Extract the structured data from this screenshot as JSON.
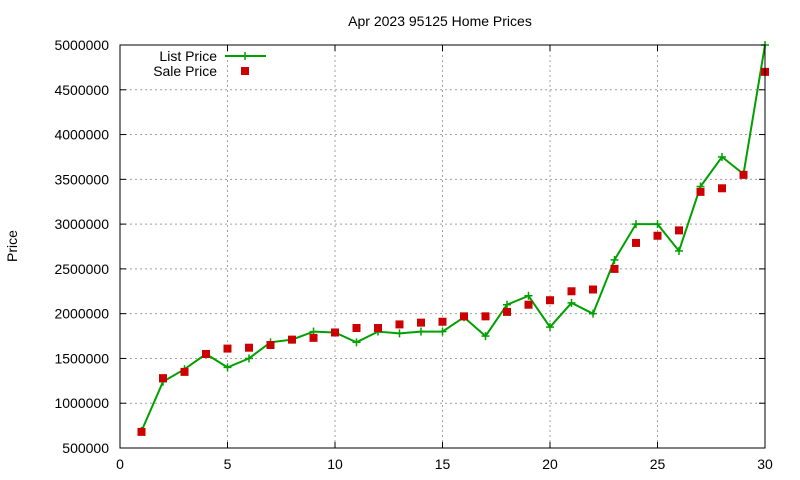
{
  "chart_data": {
    "type": "line",
    "title": "Apr 2023 95125 Home Prices",
    "xlabel": "",
    "ylabel": "Price",
    "xlim": [
      0,
      30
    ],
    "ylim": [
      500000,
      5000000
    ],
    "x_ticks": [
      0,
      5,
      10,
      15,
      20,
      25,
      30
    ],
    "y_ticks": [
      500000,
      1000000,
      1500000,
      2000000,
      2500000,
      3000000,
      3500000,
      4000000,
      4500000,
      5000000
    ],
    "grid": true,
    "legend_position": "top-left",
    "series": [
      {
        "name": "List Price",
        "style": "linespoints",
        "marker": "plus",
        "color": "#00a000",
        "x": [
          1,
          2,
          3,
          4,
          5,
          6,
          7,
          8,
          9,
          10,
          11,
          12,
          13,
          14,
          15,
          16,
          17,
          18,
          19,
          20,
          21,
          22,
          23,
          24,
          25,
          26,
          27,
          28,
          29,
          30
        ],
        "values": [
          690000,
          1240000,
          1380000,
          1550000,
          1400000,
          1500000,
          1680000,
          1710000,
          1800000,
          1790000,
          1680000,
          1800000,
          1780000,
          1800000,
          1800000,
          1960000,
          1750000,
          2100000,
          2200000,
          1850000,
          2120000,
          2000000,
          2600000,
          3000000,
          3000000,
          2700000,
          3420000,
          3750000,
          3560000,
          5000000
        ]
      },
      {
        "name": "Sale Price",
        "style": "points",
        "marker": "square",
        "color": "#cc0000",
        "x": [
          1,
          2,
          3,
          4,
          5,
          6,
          7,
          8,
          9,
          10,
          11,
          12,
          13,
          14,
          15,
          16,
          17,
          18,
          19,
          20,
          21,
          22,
          23,
          24,
          25,
          26,
          27,
          28,
          29,
          30
        ],
        "values": [
          680000,
          1280000,
          1350000,
          1550000,
          1610000,
          1620000,
          1650000,
          1710000,
          1730000,
          1790000,
          1840000,
          1840000,
          1880000,
          1900000,
          1910000,
          1970000,
          1970000,
          2020000,
          2100000,
          2150000,
          2250000,
          2270000,
          2500000,
          2790000,
          2870000,
          2930000,
          3360000,
          3400000,
          3550000,
          4700000
        ]
      }
    ]
  }
}
